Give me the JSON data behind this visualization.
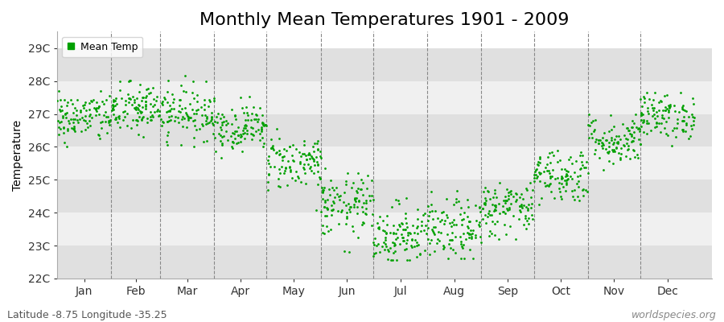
{
  "title": "Monthly Mean Temperatures 1901 - 2009",
  "ylabel": "Temperature",
  "xlabel": "",
  "footer_left": "Latitude -8.75 Longitude -35.25",
  "footer_right": "worldspecies.org",
  "legend_label": "Mean Temp",
  "ytick_labels": [
    "22C",
    "23C",
    "24C",
    "25C",
    "26C",
    "27C",
    "28C",
    "29C"
  ],
  "ytick_values": [
    22,
    23,
    24,
    25,
    26,
    27,
    28,
    29
  ],
  "ylim": [
    22,
    29.5
  ],
  "months": [
    "Jan",
    "Feb",
    "Mar",
    "Apr",
    "May",
    "Jun",
    "Jul",
    "Aug",
    "Sep",
    "Oct",
    "Nov",
    "Dec"
  ],
  "dot_color": "#00a000",
  "bg_color": "#ffffff",
  "band_color_dark": "#e0e0e0",
  "band_color_light": "#f0f0f0",
  "title_fontsize": 16,
  "axis_fontsize": 10,
  "footer_fontsize": 9,
  "n_years": 109,
  "monthly_means": [
    26.9,
    27.15,
    27.05,
    26.6,
    25.55,
    24.2,
    23.35,
    23.45,
    24.15,
    25.15,
    26.2,
    26.95
  ],
  "monthly_stds": [
    0.38,
    0.4,
    0.4,
    0.35,
    0.42,
    0.48,
    0.48,
    0.47,
    0.42,
    0.42,
    0.38,
    0.35
  ],
  "monthly_mins": [
    26.0,
    26.0,
    26.0,
    25.6,
    24.0,
    22.7,
    22.55,
    22.6,
    23.2,
    24.2,
    25.3,
    25.9
  ],
  "monthly_maxs": [
    27.7,
    28.1,
    28.55,
    28.0,
    26.7,
    25.5,
    24.45,
    24.75,
    25.35,
    26.0,
    27.0,
    27.65
  ]
}
